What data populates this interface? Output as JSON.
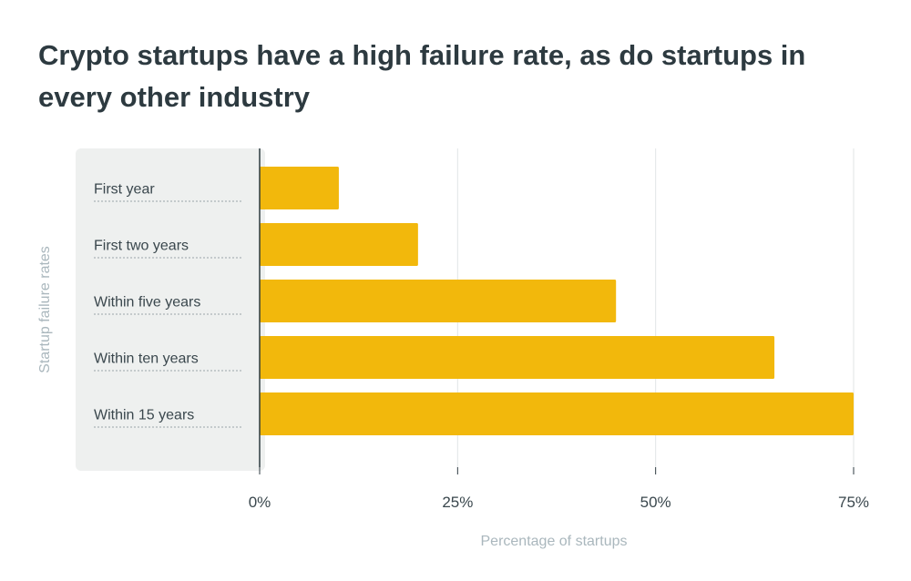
{
  "title": "Crypto startups have a high failure rate, as do startups in every other industry",
  "colors": {
    "bar": "#f2b80c",
    "panel": "#eef0ef",
    "grid": "#e1e5e6",
    "axis": "#2d3a40",
    "dotted": "#9aa5aa"
  },
  "chart_data": {
    "type": "bar",
    "orientation": "horizontal",
    "title": "Crypto startups have a high failure rate, as do startups in every other industry",
    "categories": [
      "First year",
      "First two years",
      "Within five years",
      "Within ten years",
      "Within 15 years"
    ],
    "values": [
      10,
      20,
      45,
      65,
      75
    ],
    "xlabel": "Percentage of startups",
    "ylabel": "Startup failure rates",
    "xlim": [
      0,
      75
    ],
    "xticks": [
      0,
      25,
      50,
      75
    ],
    "xtick_labels": [
      "0%",
      "25%",
      "50%",
      "75%"
    ],
    "grid": true,
    "legend": "none"
  }
}
